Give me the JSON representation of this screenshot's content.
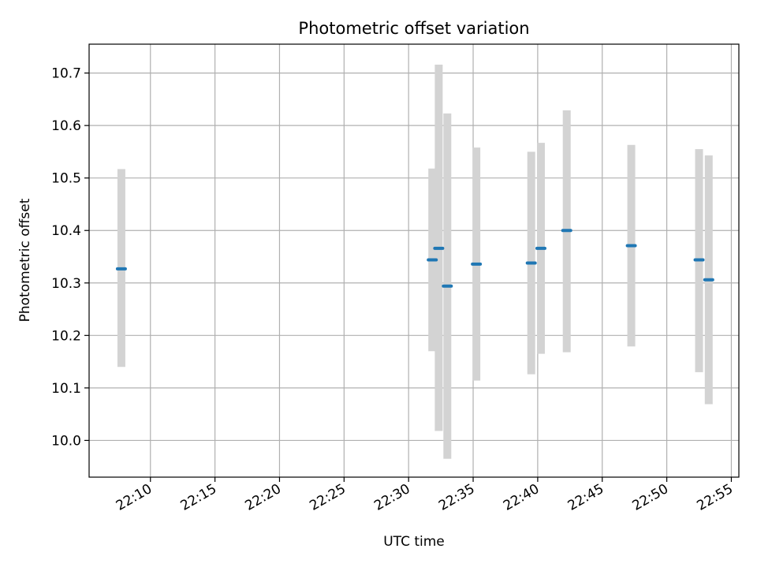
{
  "chart_data": {
    "type": "scatter",
    "title": "Photometric offset variation",
    "xlabel": "UTC time",
    "ylabel": "Photometric offset",
    "x_tick_labels": [
      "22:10",
      "22:15",
      "22:20",
      "22:25",
      "22:30",
      "22:35",
      "22:40",
      "22:45",
      "22:50",
      "22:55"
    ],
    "y_tick_labels": [
      "10.0",
      "10.1",
      "10.2",
      "10.3",
      "10.4",
      "10.5",
      "10.6",
      "10.7"
    ],
    "x_ticks": [
      "22:10",
      "22:15",
      "22:20",
      "22:25",
      "22:30",
      "22:35",
      "22:40",
      "22:45",
      "22:50",
      "22:55"
    ],
    "y_ticks": [
      10.0,
      10.1,
      10.2,
      10.3,
      10.4,
      10.5,
      10.6,
      10.7
    ],
    "xlim": [
      "22:05:15",
      "22:55:35"
    ],
    "ylim": [
      9.93,
      10.755
    ],
    "grid": true,
    "points": [
      {
        "time": "22:07:45",
        "offset": 10.327,
        "low": 10.14,
        "high": 10.517
      },
      {
        "time": "22:31:50",
        "offset": 10.344,
        "low": 10.17,
        "high": 10.518
      },
      {
        "time": "22:32:20",
        "offset": 10.366,
        "low": 10.018,
        "high": 10.716
      },
      {
        "time": "22:33:00",
        "offset": 10.294,
        "low": 9.965,
        "high": 10.623
      },
      {
        "time": "22:35:15",
        "offset": 10.336,
        "low": 10.114,
        "high": 10.558
      },
      {
        "time": "22:39:30",
        "offset": 10.338,
        "low": 10.126,
        "high": 10.55
      },
      {
        "time": "22:40:15",
        "offset": 10.366,
        "low": 10.165,
        "high": 10.567
      },
      {
        "time": "22:42:15",
        "offset": 10.4,
        "low": 10.168,
        "high": 10.629
      },
      {
        "time": "22:47:15",
        "offset": 10.371,
        "low": 10.179,
        "high": 10.563
      },
      {
        "time": "22:52:30",
        "offset": 10.344,
        "low": 10.13,
        "high": 10.555
      },
      {
        "time": "22:53:15",
        "offset": 10.306,
        "low": 10.069,
        "high": 10.543
      }
    ],
    "colors": {
      "marker": "#1f77b4",
      "errorbar": "#d3d3d3",
      "grid": "#b0b0b0",
      "axes": "#000000"
    }
  }
}
